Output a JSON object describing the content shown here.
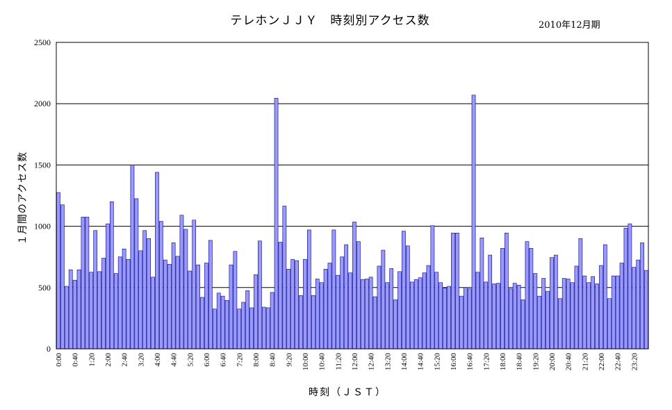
{
  "chart_data": {
    "type": "bar",
    "title": "テレホンＪＪＹ　時刻別アクセス数",
    "subtitle": "2010年12月期",
    "xlabel": "時刻（ＪＳＴ）",
    "ylabel": "１月間のアクセス数",
    "ylim": [
      0,
      2500
    ],
    "yticks": [
      0,
      500,
      1000,
      1500,
      2000,
      2500
    ],
    "grid": true,
    "bar_color": "#9999ff",
    "bar_edge_color": "#000080",
    "xtick_labels": [
      "0:00",
      "0:40",
      "1:20",
      "2:00",
      "2:40",
      "3:20",
      "4:00",
      "4:40",
      "5:20",
      "6:00",
      "6:40",
      "7:20",
      "8:00",
      "8:40",
      "9:20",
      "10:00",
      "10:40",
      "11:20",
      "12:00",
      "12:40",
      "13:20",
      "14:00",
      "14:40",
      "15:20",
      "16:00",
      "16:40",
      "17:20",
      "18:00",
      "18:40",
      "19:20",
      "20:00",
      "20:40",
      "21:20",
      "22:00",
      "22:40",
      "23:20"
    ],
    "x_interval_minutes": 10,
    "values": [
      1275,
      1175,
      510,
      645,
      560,
      645,
      1075,
      1075,
      625,
      965,
      630,
      740,
      1020,
      1200,
      615,
      750,
      815,
      730,
      1500,
      1225,
      800,
      965,
      900,
      585,
      1440,
      1040,
      725,
      690,
      865,
      755,
      1090,
      975,
      635,
      1050,
      685,
      420,
      700,
      885,
      325,
      455,
      430,
      395,
      685,
      795,
      325,
      380,
      475,
      335,
      605,
      880,
      340,
      335,
      460,
      2045,
      870,
      1165,
      650,
      730,
      720,
      435,
      730,
      970,
      435,
      570,
      540,
      650,
      700,
      970,
      600,
      750,
      850,
      620,
      1035,
      875,
      565,
      570,
      585,
      425,
      675,
      805,
      540,
      655,
      400,
      630,
      960,
      840,
      545,
      565,
      580,
      620,
      680,
      1005,
      625,
      540,
      495,
      510,
      945,
      945,
      430,
      500,
      490,
      2070,
      625,
      905,
      545,
      765,
      530,
      535,
      820,
      945,
      490,
      535,
      520,
      400,
      875,
      820,
      615,
      430,
      575,
      470,
      745,
      765,
      410,
      575,
      570,
      540,
      675,
      900,
      595,
      540,
      590,
      530,
      680,
      850,
      410,
      595,
      595,
      700,
      985,
      1020,
      665,
      725,
      865,
      640
    ]
  }
}
